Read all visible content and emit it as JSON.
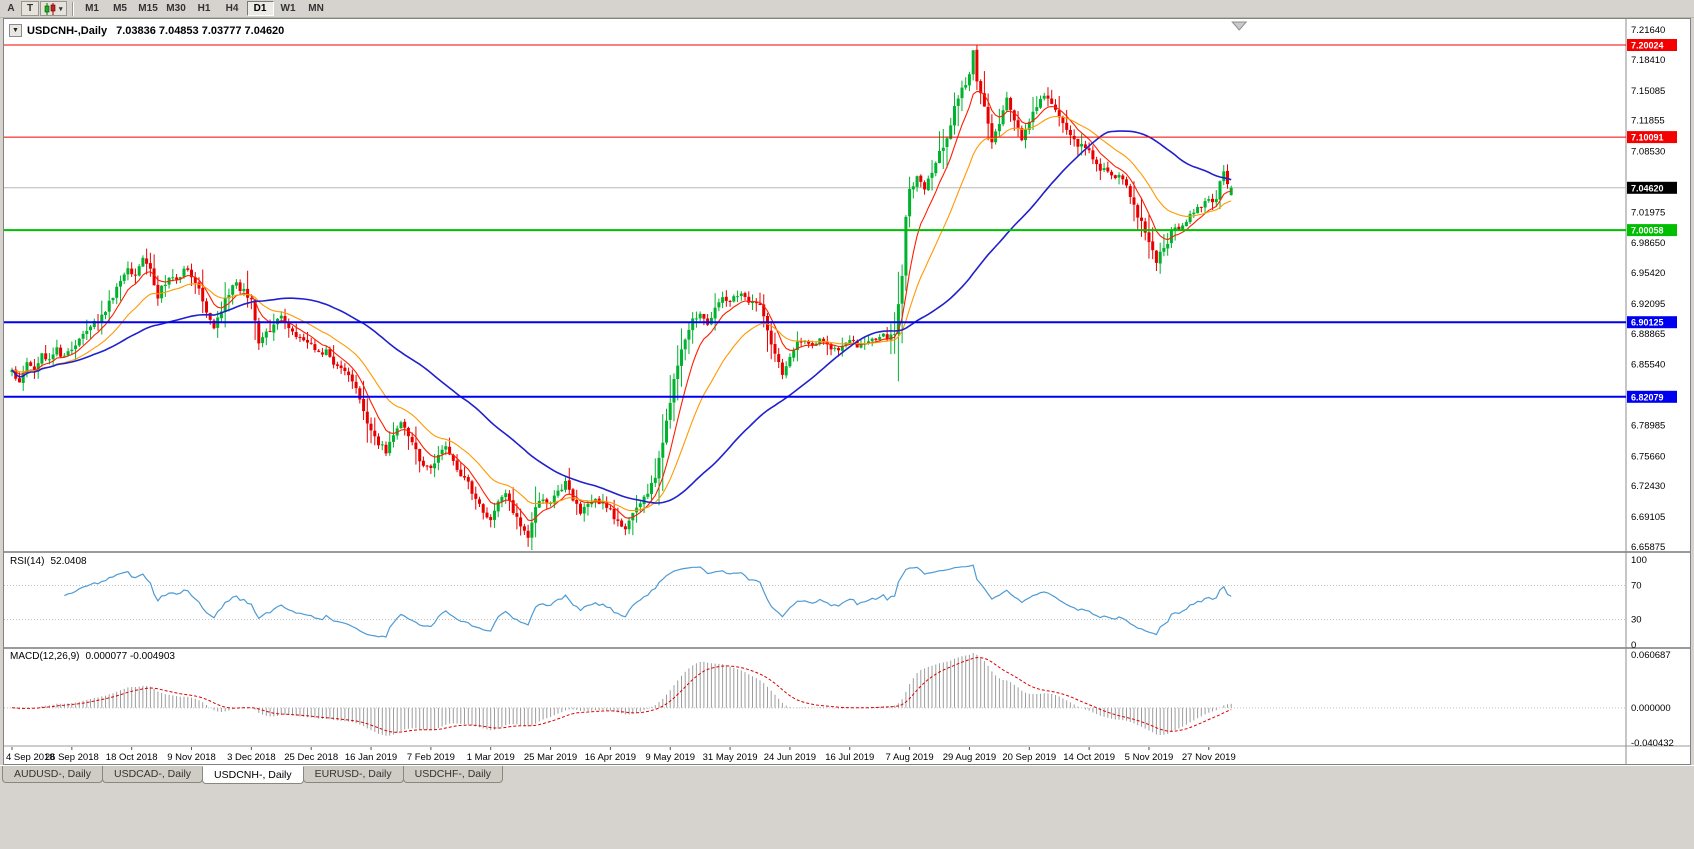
{
  "toolbar": {
    "left_buttons": [
      "A",
      "T"
    ],
    "chart_type_button": "candlestick-chart",
    "timeframes": [
      "M1",
      "M5",
      "M15",
      "M30",
      "H1",
      "H4",
      "D1",
      "W1",
      "MN"
    ],
    "active_timeframe": "D1"
  },
  "header": {
    "symbol_title": "USDCNH-,Daily",
    "quote": "7.03836 7.04853 7.03777 7.04620"
  },
  "rsi_panel": {
    "name": "RSI(14)",
    "value": "52.0408",
    "axis_labels": [
      "100",
      "70",
      "30",
      "0"
    ]
  },
  "macd_panel": {
    "name": "MACD(12,26,9)",
    "value": "0.000077 -0.004903",
    "axis_labels": [
      "0.060687",
      "0.000000",
      "-0.040432"
    ]
  },
  "price_axis": {
    "scale_labels": [
      "7.21640",
      "7.18410",
      "7.15085",
      "7.11855",
      "7.08530",
      "7.01975",
      "6.98650",
      "6.95420",
      "6.92095",
      "6.88865",
      "6.85540",
      "6.78985",
      "6.75660",
      "6.72430",
      "6.69105",
      "6.65875"
    ],
    "current_price_label": "7.04620"
  },
  "date_axis": [
    "4 Sep 2018",
    "26 Sep 2018",
    "18 Oct 2018",
    "9 Nov 2018",
    "3 Dec 2018",
    "25 Dec 2018",
    "16 Jan 2019",
    "7 Feb 2019",
    "1 Mar 2019",
    "25 Mar 2019",
    "16 Apr 2019",
    "9 May 2019",
    "31 May 2019",
    "24 Jun 2019",
    "16 Jul 2019",
    "7 Aug 2019",
    "29 Aug 2019",
    "20 Sep 2019",
    "14 Oct 2019",
    "5 Nov 2019",
    "27 Nov 2019"
  ],
  "tabs": {
    "items": [
      "AUDUSD-, Daily",
      "USDCAD-, Daily",
      "USDCNH-, Daily",
      "EURUSD-, Daily",
      "USDCHF-, Daily"
    ],
    "active": "USDCNH-, Daily"
  },
  "chart_data": {
    "type": "candlestick",
    "symbol": "USDCNH-",
    "period": "Daily",
    "title": "USDCNH-,Daily",
    "current_bar": {
      "open": 7.03836,
      "high": 7.04853,
      "low": 7.03777,
      "close": 7.0462
    },
    "current_price": 7.0462,
    "bars": 327,
    "bars_per_date_label": 16,
    "ylim": [
      6.65875,
      7.2164
    ],
    "close_anchors": [
      [
        0,
        6.848
      ],
      [
        2,
        6.838
      ],
      [
        4,
        6.856
      ],
      [
        6,
        6.846
      ],
      [
        8,
        6.868
      ],
      [
        10,
        6.858
      ],
      [
        12,
        6.872
      ],
      [
        14,
        6.862
      ],
      [
        16,
        6.872
      ],
      [
        20,
        6.89
      ],
      [
        24,
        6.908
      ],
      [
        28,
        6.938
      ],
      [
        31,
        6.962
      ],
      [
        33,
        6.95
      ],
      [
        35,
        6.974
      ],
      [
        37,
        6.956
      ],
      [
        39,
        6.93
      ],
      [
        42,
        6.952
      ],
      [
        44,
        6.946
      ],
      [
        46,
        6.958
      ],
      [
        48,
        6.952
      ],
      [
        50,
        6.94
      ],
      [
        52,
        6.912
      ],
      [
        54,
        6.896
      ],
      [
        56,
        6.916
      ],
      [
        58,
        6.934
      ],
      [
        60,
        6.942
      ],
      [
        62,
        6.934
      ],
      [
        64,
        6.928
      ],
      [
        66,
        6.878
      ],
      [
        68,
        6.888
      ],
      [
        70,
        6.898
      ],
      [
        72,
        6.906
      ],
      [
        74,
        6.894
      ],
      [
        76,
        6.886
      ],
      [
        78,
        6.88
      ],
      [
        80,
        6.877
      ],
      [
        82,
        6.867
      ],
      [
        84,
        6.871
      ],
      [
        86,
        6.857
      ],
      [
        88,
        6.851
      ],
      [
        90,
        6.844
      ],
      [
        92,
        6.831
      ],
      [
        94,
        6.807
      ],
      [
        96,
        6.782
      ],
      [
        98,
        6.772
      ],
      [
        100,
        6.761
      ],
      [
        102,
        6.777
      ],
      [
        104,
        6.792
      ],
      [
        106,
        6.777
      ],
      [
        108,
        6.761
      ],
      [
        110,
        6.747
      ],
      [
        112,
        6.741
      ],
      [
        114,
        6.757
      ],
      [
        116,
        6.771
      ],
      [
        118,
        6.751
      ],
      [
        120,
        6.737
      ],
      [
        122,
        6.727
      ],
      [
        124,
        6.711
      ],
      [
        126,
        6.697
      ],
      [
        128,
        6.691
      ],
      [
        130,
        6.707
      ],
      [
        132,
        6.717
      ],
      [
        134,
        6.697
      ],
      [
        136,
        6.681
      ],
      [
        138,
        6.671
      ],
      [
        140,
        6.701
      ],
      [
        142,
        6.711
      ],
      [
        144,
        6.707
      ],
      [
        146,
        6.721
      ],
      [
        148,
        6.727
      ],
      [
        150,
        6.711
      ],
      [
        152,
        6.697
      ],
      [
        154,
        6.707
      ],
      [
        156,
        6.711
      ],
      [
        158,
        6.704
      ],
      [
        160,
        6.697
      ],
      [
        162,
        6.687
      ],
      [
        164,
        6.681
      ],
      [
        166,
        6.694
      ],
      [
        168,
        6.707
      ],
      [
        170,
        6.717
      ],
      [
        172,
        6.734
      ],
      [
        174,
        6.774
      ],
      [
        176,
        6.817
      ],
      [
        178,
        6.857
      ],
      [
        180,
        6.881
      ],
      [
        182,
        6.904
      ],
      [
        184,
        6.911
      ],
      [
        186,
        6.901
      ],
      [
        188,
        6.917
      ],
      [
        190,
        6.931
      ],
      [
        192,
        6.924
      ],
      [
        194,
        6.931
      ],
      [
        196,
        6.927
      ],
      [
        198,
        6.921
      ],
      [
        200,
        6.917
      ],
      [
        202,
        6.894
      ],
      [
        204,
        6.867
      ],
      [
        206,
        6.847
      ],
      [
        208,
        6.867
      ],
      [
        210,
        6.877
      ],
      [
        212,
        6.881
      ],
      [
        214,
        6.877
      ],
      [
        216,
        6.884
      ],
      [
        218,
        6.877
      ],
      [
        220,
        6.871
      ],
      [
        222,
        6.877
      ],
      [
        224,
        6.881
      ],
      [
        226,
        6.877
      ],
      [
        228,
        6.881
      ],
      [
        230,
        6.884
      ],
      [
        232,
        6.887
      ],
      [
        234,
        6.884
      ],
      [
        236,
        6.891
      ],
      [
        238,
        6.954
      ],
      [
        239,
        7.016
      ],
      [
        240,
        7.042
      ],
      [
        242,
        7.057
      ],
      [
        244,
        7.047
      ],
      [
        246,
        7.061
      ],
      [
        248,
        7.084
      ],
      [
        250,
        7.101
      ],
      [
        252,
        7.131
      ],
      [
        254,
        7.151
      ],
      [
        256,
        7.167
      ],
      [
        257,
        7.191
      ],
      [
        258,
        7.161
      ],
      [
        260,
        7.131
      ],
      [
        262,
        7.094
      ],
      [
        264,
        7.117
      ],
      [
        266,
        7.141
      ],
      [
        268,
        7.117
      ],
      [
        270,
        7.101
      ],
      [
        272,
        7.117
      ],
      [
        274,
        7.134
      ],
      [
        276,
        7.147
      ],
      [
        278,
        7.137
      ],
      [
        280,
        7.121
      ],
      [
        282,
        7.107
      ],
      [
        284,
        7.097
      ],
      [
        286,
        7.091
      ],
      [
        288,
        7.084
      ],
      [
        290,
        7.071
      ],
      [
        292,
        7.064
      ],
      [
        294,
        7.057
      ],
      [
        296,
        7.061
      ],
      [
        298,
        7.047
      ],
      [
        300,
        7.027
      ],
      [
        302,
        7.007
      ],
      [
        304,
        6.987
      ],
      [
        306,
        6.967
      ],
      [
        308,
        6.981
      ],
      [
        310,
        6.997
      ],
      [
        312,
        7.004
      ],
      [
        314,
        7.011
      ],
      [
        316,
        7.021
      ],
      [
        318,
        7.027
      ],
      [
        320,
        7.031
      ],
      [
        322,
        7.037
      ],
      [
        324,
        7.067
      ],
      [
        325,
        7.051
      ],
      [
        326,
        7.046
      ]
    ],
    "levels": [
      {
        "price": 7.20024,
        "label": "7.20024",
        "color": "#F40000",
        "width": 1
      },
      {
        "price": 7.10091,
        "label": "7.10091",
        "color": "#F40000",
        "width": 1
      },
      {
        "price": 7.00058,
        "label": "7.00058",
        "color": "#00BE00",
        "width": 2
      },
      {
        "price": 6.90125,
        "label": "6.90125",
        "color": "#0000F0",
        "width": 2
      },
      {
        "price": 6.82079,
        "label": "6.82079",
        "color": "#0000F0",
        "width": 2
      }
    ],
    "moving_averages": [
      {
        "period": 8,
        "type": "ema",
        "color": "#FF1E00",
        "width": 1.1
      },
      {
        "period": 21,
        "type": "ema",
        "color": "#FF9900",
        "width": 1.1
      },
      {
        "period": 55,
        "type": "sma",
        "color": "#2020CC",
        "width": 1.6
      }
    ],
    "colors": {
      "up": "#00B22D",
      "down": "#E80000",
      "current_price_line": "#B8B8B8",
      "current_price_tag": "#000000",
      "rsi_line": "#4E9BD4",
      "macd_hist": "#9C9C9C",
      "macd_signal": "#DD0000",
      "guide_dotted": "#C4C4C4"
    },
    "rsi": {
      "period": 14,
      "last": 52.0408,
      "ylim": [
        0,
        100
      ],
      "guide_levels": [
        70,
        30
      ]
    },
    "macd": {
      "fast": 12,
      "slow": 26,
      "signal_period": 9,
      "last_main": 7.7e-05,
      "last_signal": -0.004903,
      "ylim": [
        -0.040432,
        0.060687
      ]
    }
  }
}
